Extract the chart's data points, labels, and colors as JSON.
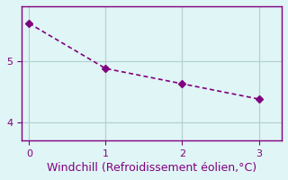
{
  "x": [
    0,
    1,
    2,
    3
  ],
  "y": [
    5.62,
    4.88,
    4.63,
    4.38
  ],
  "line_color": "#800080",
  "marker": "D",
  "marker_size": 4,
  "xlabel": "Windchill (Refroidissement éolien,°C)",
  "xlabel_color": "#800080",
  "xlabel_fontsize": 9,
  "background_color": "#e0f5f5",
  "grid_color": "#b0d0d0",
  "tick_color": "#800080",
  "xlim": [
    -0.1,
    3.3
  ],
  "ylim": [
    3.7,
    5.9
  ],
  "yticks": [
    4,
    5
  ],
  "xticks": [
    0,
    1,
    2,
    3
  ],
  "line_width": 1.2,
  "spine_color": "#800080"
}
